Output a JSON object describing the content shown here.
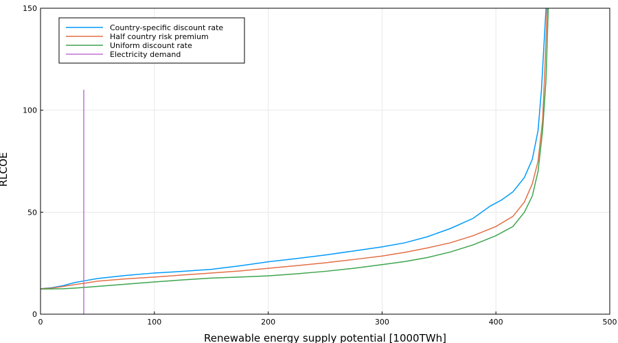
{
  "chart_data": {
    "type": "line",
    "title": "",
    "xlabel": "Renewable energy supply potential [1000TWh]",
    "ylabel": "RLCOE",
    "xlim": [
      0,
      500
    ],
    "ylim": [
      0,
      150
    ],
    "xticks": [
      "0",
      "100",
      "200",
      "300",
      "400",
      "500"
    ],
    "yticks": [
      "0",
      "50",
      "100",
      "150"
    ],
    "grid": true,
    "legend_position": "top-left",
    "series": [
      {
        "name": "Country-specific discount rate",
        "color": "#009AFA",
        "points": [
          [
            0,
            12.5
          ],
          [
            10,
            13.0
          ],
          [
            20,
            14.0
          ],
          [
            30,
            15.5
          ],
          [
            40,
            16.5
          ],
          [
            50,
            17.5
          ],
          [
            75,
            19.0
          ],
          [
            100,
            20.2
          ],
          [
            125,
            21.0
          ],
          [
            150,
            22.0
          ],
          [
            175,
            23.7
          ],
          [
            200,
            25.7
          ],
          [
            225,
            27.3
          ],
          [
            250,
            29.0
          ],
          [
            275,
            31.0
          ],
          [
            300,
            33.0
          ],
          [
            320,
            35.0
          ],
          [
            340,
            38.0
          ],
          [
            360,
            42.0
          ],
          [
            380,
            47.0
          ],
          [
            395,
            53.0
          ],
          [
            405,
            56.0
          ],
          [
            415,
            60.0
          ],
          [
            425,
            67.0
          ],
          [
            432,
            76.0
          ],
          [
            437,
            90.0
          ],
          [
            440,
            110.0
          ],
          [
            442,
            130.0
          ],
          [
            444,
            150.0
          ]
        ]
      },
      {
        "name": "Half country risk premium",
        "color": "#E26F46",
        "points": [
          [
            0,
            12.5
          ],
          [
            10,
            12.8
          ],
          [
            20,
            13.6
          ],
          [
            30,
            14.5
          ],
          [
            40,
            15.3
          ],
          [
            50,
            16.2
          ],
          [
            75,
            17.3
          ],
          [
            100,
            18.2
          ],
          [
            125,
            19.2
          ],
          [
            150,
            20.2
          ],
          [
            175,
            21.2
          ],
          [
            200,
            22.5
          ],
          [
            225,
            23.8
          ],
          [
            250,
            25.2
          ],
          [
            275,
            26.8
          ],
          [
            300,
            28.5
          ],
          [
            320,
            30.3
          ],
          [
            340,
            32.5
          ],
          [
            360,
            35.0
          ],
          [
            380,
            38.5
          ],
          [
            400,
            43.0
          ],
          [
            415,
            48.0
          ],
          [
            425,
            55.0
          ],
          [
            432,
            64.0
          ],
          [
            437,
            75.0
          ],
          [
            441,
            95.0
          ],
          [
            443,
            120.0
          ],
          [
            445,
            150.0
          ]
        ]
      },
      {
        "name": "Uniform discount rate",
        "color": "#3DA44D",
        "points": [
          [
            0,
            12.3
          ],
          [
            10,
            12.4
          ],
          [
            20,
            12.5
          ],
          [
            30,
            12.8
          ],
          [
            40,
            13.2
          ],
          [
            50,
            13.6
          ],
          [
            75,
            14.7
          ],
          [
            100,
            15.8
          ],
          [
            125,
            16.8
          ],
          [
            150,
            17.7
          ],
          [
            175,
            18.2
          ],
          [
            200,
            18.8
          ],
          [
            225,
            19.8
          ],
          [
            250,
            21.0
          ],
          [
            275,
            22.5
          ],
          [
            300,
            24.3
          ],
          [
            320,
            25.8
          ],
          [
            340,
            27.8
          ],
          [
            360,
            30.5
          ],
          [
            380,
            34.0
          ],
          [
            400,
            38.5
          ],
          [
            415,
            43.0
          ],
          [
            425,
            50.0
          ],
          [
            432,
            58.0
          ],
          [
            437,
            70.0
          ],
          [
            441,
            90.0
          ],
          [
            444,
            115.0
          ],
          [
            446,
            150.0
          ]
        ]
      },
      {
        "name": "Electricity demand",
        "color": "#C271D2",
        "points": [
          [
            38,
            0
          ],
          [
            38,
            110
          ]
        ]
      }
    ]
  }
}
